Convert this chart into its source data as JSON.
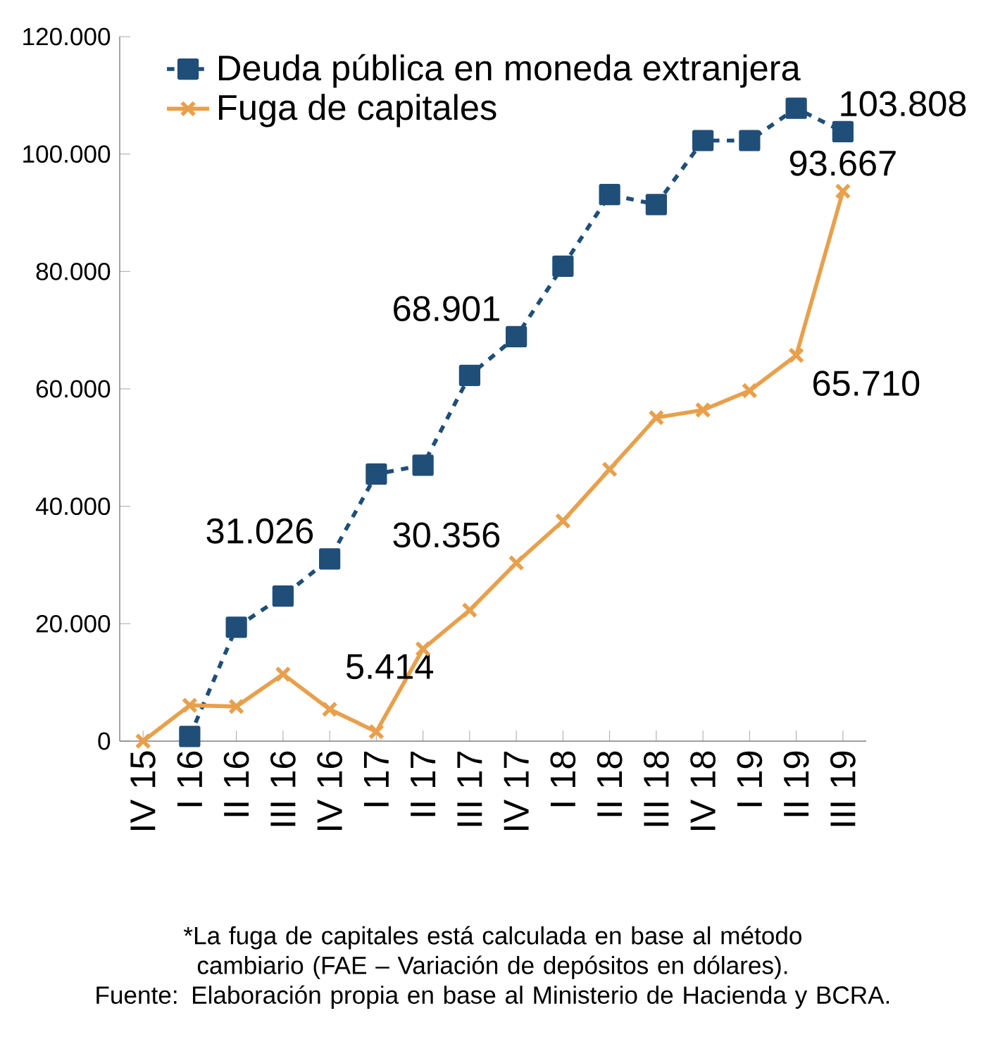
{
  "chart_data": {
    "type": "line",
    "categories": [
      "IV 15",
      "I 16",
      "II 16",
      "III 16",
      "IV 16",
      "I 17",
      "II 17",
      "III 17",
      "IV 17",
      "I 18",
      "II 18",
      "III 18",
      "IV 18",
      "I 19",
      "II 19",
      "III 19"
    ],
    "series": [
      {
        "name": "Deuda pública en moneda extranjera",
        "color": "#1f4e79",
        "marker": "square",
        "line_style": "dashed",
        "values": [
          null,
          800,
          19400,
          24700,
          31026,
          45500,
          47000,
          62300,
          68901,
          80900,
          93100,
          91400,
          102300,
          102300,
          107800,
          103808
        ],
        "value_labels": [
          null,
          null,
          null,
          null,
          "31.026",
          null,
          null,
          null,
          "68.901",
          null,
          null,
          null,
          null,
          null,
          null,
          "103.808"
        ]
      },
      {
        "name": "Fuga de capitales",
        "color": "#e8a04c",
        "marker": "cross",
        "line_style": "solid",
        "values": [
          0,
          6100,
          5900,
          11400,
          5414,
          1600,
          15700,
          22300,
          30356,
          37500,
          46300,
          55100,
          56400,
          59700,
          65710,
          93667
        ],
        "value_labels": [
          null,
          null,
          null,
          null,
          "5.414",
          null,
          null,
          null,
          "30.356",
          null,
          null,
          null,
          null,
          null,
          "65.710",
          "93.667"
        ]
      }
    ],
    "ylim": [
      0,
      120000
    ],
    "yticks": [
      {
        "value": 0,
        "label": "0"
      },
      {
        "value": 20000,
        "label": "20.000"
      },
      {
        "value": 40000,
        "label": "40.000"
      },
      {
        "value": 60000,
        "label": "60.000"
      },
      {
        "value": 80000,
        "label": "80.000"
      },
      {
        "value": 100000,
        "label": "100.000"
      },
      {
        "value": 120000,
        "label": "120.000"
      }
    ],
    "grid": false,
    "legend": "top left",
    "annotations": [
      "*La fuga de capitales está calculada en base al método cambiario (FAE – Variación de depósitos en dólares).",
      "Fuente: Elaboración propia en base al Ministerio de Hacienda y BCRA."
    ]
  }
}
